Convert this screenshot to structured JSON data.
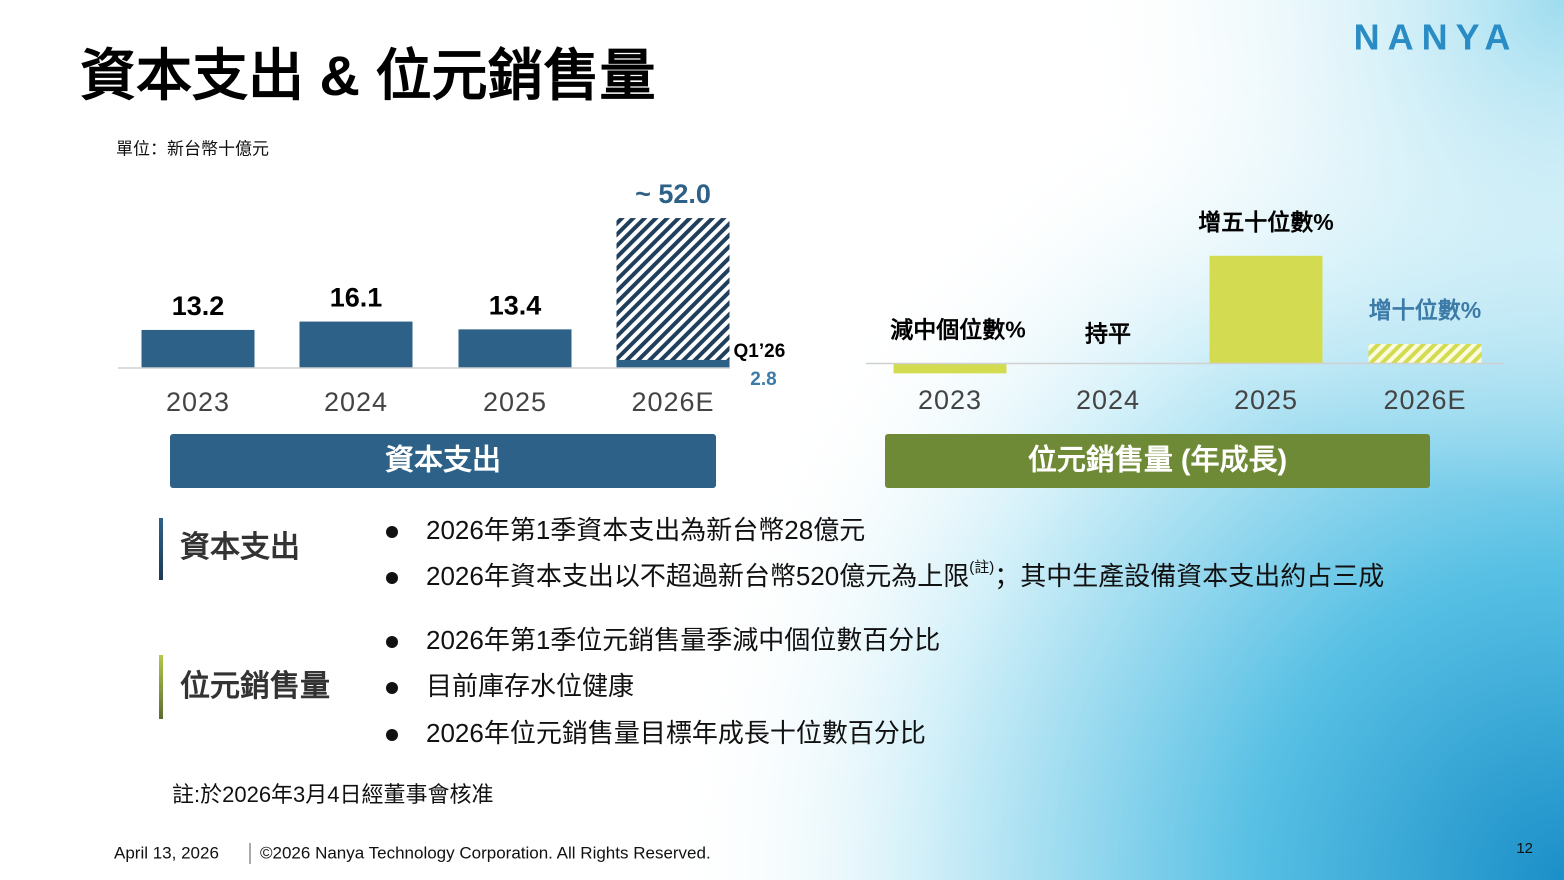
{
  "header": {
    "title": "資本支出 & 位元銷售量",
    "logo": "NANYA",
    "unit": "單位：新台幣十億元"
  },
  "chart_data": [
    {
      "type": "bar",
      "categories": [
        "2023",
        "2024",
        "2025",
        "2026E"
      ],
      "values": [
        13.2,
        16.1,
        13.4,
        52.0
      ],
      "value_labels": [
        "13.2",
        "16.1",
        "13.4",
        "~ 52.0"
      ],
      "color": "#2e6187",
      "hatched": [
        false,
        false,
        false,
        true
      ],
      "ylim": [
        0,
        60
      ],
      "annotation": {
        "label": "Q1’26",
        "value": 2.8
      },
      "caption": "資本支出"
    },
    {
      "type": "bar",
      "categories": [
        "2023",
        "2024",
        "2025",
        "2026E"
      ],
      "values": [
        -5,
        0,
        55,
        10
      ],
      "value_labels": [
        "減中個位數%",
        "持平",
        "增五十位數%",
        "增十位數%"
      ],
      "color": "#d3dc50",
      "hatched": [
        false,
        false,
        false,
        true
      ],
      "ylim": [
        -10,
        60
      ],
      "caption": "位元銷售量 (年成長)"
    }
  ],
  "notes": [
    {
      "heading": "資本支出",
      "items": [
        {
          "text": "2026年第1季資本支出為新台幣28億元"
        },
        {
          "text": "2026年資本支出以不超過新台幣520億元為上限",
          "sup": "(註)",
          "tail": "；其中生產設備資本支出約占三成"
        }
      ]
    },
    {
      "heading": "位元銷售量",
      "items": [
        {
          "text": "2026年第1季位元銷售量季減中個位數百分比"
        },
        {
          "text": "目前庫存水位健康"
        },
        {
          "text": "2026年位元銷售量目標年成長十位數百分比"
        }
      ]
    }
  ],
  "footnote": "註:於2026年3月4日經董事會核准",
  "footer": {
    "date": "April 13, 2026",
    "copyright": "©2026 Nanya Technology Corporation. All Rights Reserved.",
    "page": "12"
  }
}
